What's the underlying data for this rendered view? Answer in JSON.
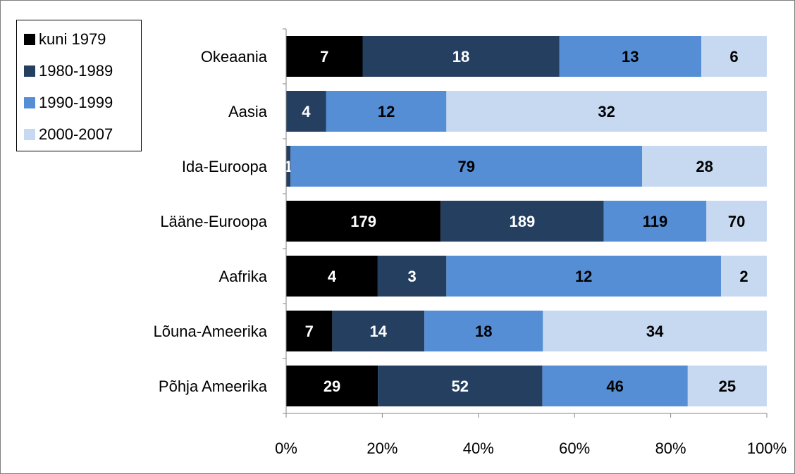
{
  "chart_data": {
    "type": "bar",
    "orientation": "horizontal",
    "stacked": "percent",
    "title": "",
    "xlabel": "",
    "ylabel": "",
    "xlim": [
      0,
      100
    ],
    "x_ticks": [
      "0%",
      "20%",
      "40%",
      "60%",
      "80%",
      "100%"
    ],
    "grid": false,
    "legend_position": "top-left",
    "categories": [
      "Okeaania",
      "Aasia",
      "Ida-Euroopa",
      "Lääne-Euroopa",
      "Aafrika",
      "Lõuna-Ameerika",
      "Põhja Ameerika"
    ],
    "series": [
      {
        "name": "kuni 1979",
        "color": "#000000",
        "label_color": "#ffffff",
        "values": [
          7,
          0,
          0,
          179,
          4,
          7,
          29
        ],
        "labels": [
          "7",
          "",
          "",
          "179",
          "4",
          "7",
          "29"
        ]
      },
      {
        "name": "1980-1989",
        "color": "#243f60",
        "label_color": "#ffffff",
        "values": [
          18,
          4,
          1,
          189,
          3,
          14,
          52
        ],
        "labels": [
          "18",
          "4",
          "1",
          "189",
          "3",
          "14",
          "52"
        ]
      },
      {
        "name": "1990-1999",
        "color": "#558ed5",
        "label_color": "#000000",
        "values": [
          13,
          12,
          79,
          119,
          12,
          18,
          46
        ],
        "labels": [
          "13",
          "12",
          "79",
          "119",
          "12",
          "18",
          "46"
        ]
      },
      {
        "name": "2000-2007",
        "color": "#c6d9f1",
        "label_color": "#000000",
        "values": [
          6,
          32,
          28,
          70,
          2,
          34,
          25
        ],
        "labels": [
          "6",
          "32",
          "28",
          "70",
          "2",
          "34",
          "25"
        ]
      }
    ]
  }
}
